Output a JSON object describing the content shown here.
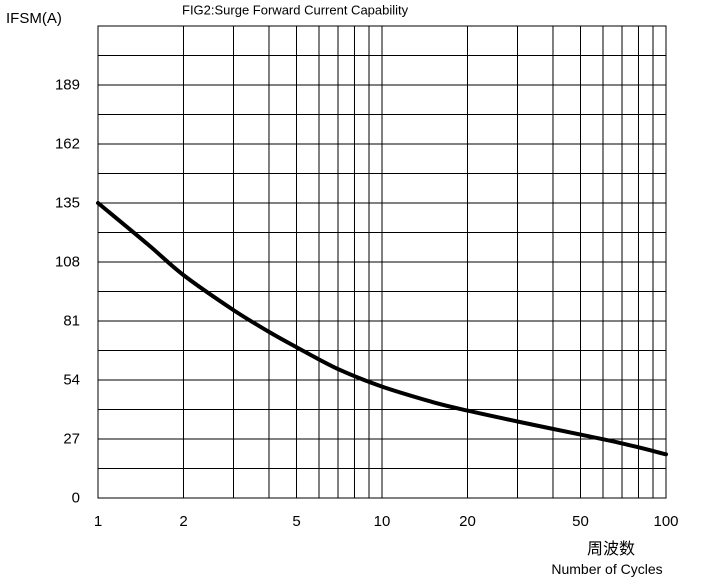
{
  "chart_data": {
    "type": "line",
    "title": "FIG2:Surge Forward Current Capability",
    "ylabel": "IFSM(A)",
    "xlabel_cn": "周波数",
    "xlabel": "Number of Cycles",
    "x_scale": "log",
    "xlim": [
      1,
      100
    ],
    "ylim": [
      0,
      216
    ],
    "x_ticks": [
      1,
      2,
      5,
      10,
      20,
      50,
      100
    ],
    "x_tick_labels": [
      "1",
      "2",
      "5",
      "10",
      "20",
      "50",
      "100"
    ],
    "y_ticks": [
      0,
      27,
      54,
      81,
      108,
      135,
      162,
      189
    ],
    "y_tick_labels": [
      "0",
      "27",
      "54",
      "81",
      "108",
      "135",
      "162",
      "189"
    ],
    "grid": true,
    "series": [
      {
        "x": [
          1,
          1.5,
          2,
          3,
          4,
          5,
          7,
          10,
          15,
          20,
          30,
          50,
          70,
          100
        ],
        "y": [
          135,
          116,
          102,
          86,
          76,
          69,
          59,
          51,
          44,
          40,
          35,
          29,
          25,
          20
        ]
      }
    ]
  }
}
